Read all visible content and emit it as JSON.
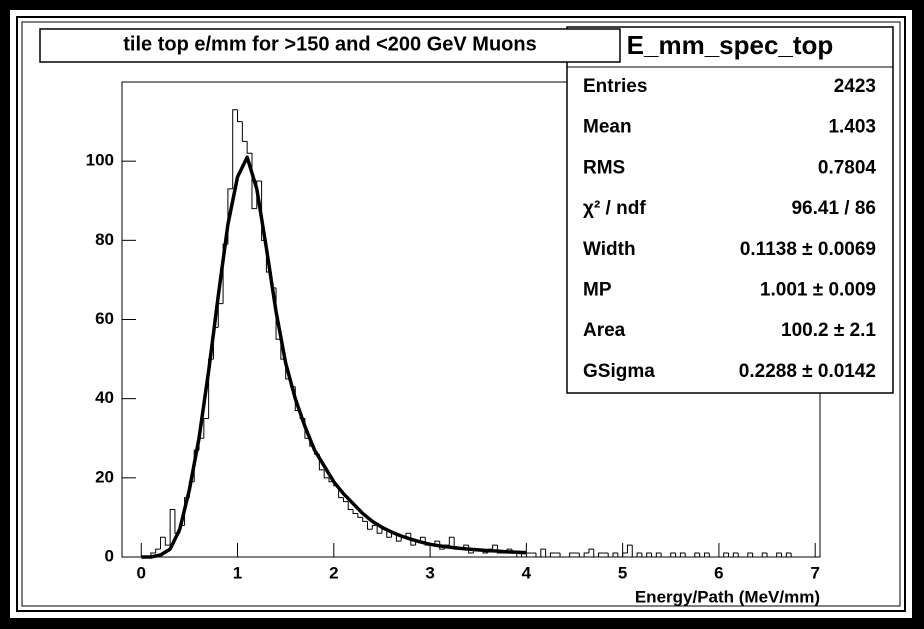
{
  "chart_data": {
    "type": "histogram",
    "title": "tile top e/mm for >150 and <200 GeV Muons",
    "x_label": "Energy/Path (MeV/mm)",
    "color": "#000000",
    "bins": [
      0,
      0.05,
      0.1,
      0.15,
      0.2,
      0.25,
      0.3,
      0.35,
      0.4,
      0.45,
      0.5,
      0.55,
      0.6,
      0.65,
      0.7,
      0.75,
      0.8,
      0.85,
      0.9,
      0.95,
      1,
      1.05,
      1.1,
      1.15,
      1.2,
      1.25,
      1.3,
      1.35,
      1.4,
      1.45,
      1.5,
      1.55,
      1.6,
      1.65,
      1.7,
      1.75,
      1.8,
      1.85,
      1.9,
      1.95,
      2,
      2.05,
      2.1,
      2.15,
      2.2,
      2.25,
      2.3,
      2.35,
      2.4,
      2.45,
      2.5,
      2.55,
      2.6,
      2.65,
      2.7,
      2.75,
      2.8,
      2.85,
      2.9,
      2.95,
      3,
      3.05,
      3.1,
      3.15,
      3.2,
      3.25,
      3.3,
      3.35,
      3.4,
      3.45,
      3.5,
      3.55,
      3.6,
      3.65,
      3.7,
      3.75,
      3.8,
      3.85,
      3.9,
      3.95,
      4,
      4.05,
      4.1,
      4.15,
      4.2,
      4.25,
      4.3,
      4.35,
      4.4,
      4.45,
      4.5,
      4.55,
      4.6,
      4.65,
      4.7,
      4.75,
      4.8,
      4.85,
      4.9,
      4.95,
      5,
      5.05,
      5.1,
      5.15,
      5.2,
      5.25,
      5.3,
      5.35,
      5.4,
      5.45,
      5.5,
      5.55,
      5.6,
      5.65,
      5.7,
      5.75,
      5.8,
      5.85,
      5.9,
      5.95,
      6,
      6.05,
      6.1,
      6.15,
      6.2,
      6.25,
      6.3,
      6.35,
      6.4,
      6.45,
      6.5,
      6.55,
      6.6,
      6.65,
      6.7,
      6.75,
      6.8,
      6.85,
      6.9,
      6.95,
      7
    ],
    "counts": [
      0,
      0,
      1,
      2,
      5,
      3,
      12,
      6,
      8,
      15,
      19,
      27,
      30,
      35,
      50,
      58,
      64,
      79,
      93,
      113,
      110,
      105,
      102,
      88,
      95,
      80,
      72,
      68,
      55,
      50,
      45,
      43,
      37,
      35,
      30,
      28,
      26,
      22,
      20,
      19,
      18,
      15,
      14,
      12,
      11,
      10,
      9,
      7,
      8,
      6,
      7,
      5,
      6,
      4,
      5,
      6,
      3,
      4,
      5,
      3,
      3,
      4,
      2,
      3,
      5,
      2,
      2,
      3,
      1,
      2,
      2,
      1,
      2,
      3,
      1,
      1,
      2,
      1,
      0,
      1,
      1,
      1,
      0,
      2,
      0,
      1,
      1,
      0,
      0,
      1,
      1,
      0,
      1,
      2,
      0,
      1,
      1,
      0,
      1,
      0,
      1,
      3,
      0,
      1,
      0,
      1,
      0,
      1,
      0,
      0,
      1,
      0,
      1,
      0,
      0,
      1,
      0,
      1,
      0,
      0,
      0,
      1,
      0,
      1,
      0,
      0,
      1,
      0,
      0,
      1,
      0,
      0,
      1,
      0,
      1,
      0,
      0,
      0,
      0,
      0
    ],
    "fit": {
      "x": [
        0,
        0.1,
        0.2,
        0.3,
        0.4,
        0.5,
        0.6,
        0.7,
        0.8,
        0.9,
        1,
        1.1,
        1.2,
        1.3,
        1.4,
        1.5,
        1.6,
        1.7,
        1.8,
        1.9,
        2,
        2.1,
        2.2,
        2.3,
        2.4,
        2.5,
        2.6,
        2.7,
        2.8,
        2.9,
        3,
        3.1,
        3.2,
        3.3,
        3.4,
        3.5,
        3.6,
        3.7,
        3.8,
        3.9,
        4
      ],
      "y": [
        0,
        0,
        0.5,
        2,
        7,
        17,
        30,
        47,
        66,
        84,
        96,
        101,
        93,
        78,
        62,
        49,
        40,
        33,
        27,
        23,
        19,
        16,
        13.5,
        11,
        9,
        7.5,
        6.3,
        5.3,
        4.5,
        3.8,
        3.2,
        2.8,
        2.5,
        2.2,
        2,
        1.8,
        1.6,
        1.5,
        1.3,
        1.2,
        1.1
      ]
    },
    "xlim": [
      -0.2,
      7.05
    ],
    "ylim": [
      0,
      120
    ],
    "xticks": [
      0,
      1,
      2,
      3,
      4,
      5,
      6,
      7
    ],
    "yticks": [
      0,
      20,
      40,
      60,
      80,
      100
    ],
    "stats": {
      "name": "E_mm_spec_top",
      "rows": [
        {
          "label": "Entries",
          "value": "2423"
        },
        {
          "label": "Mean",
          "value": "1.403"
        },
        {
          "label": "RMS",
          "value": "0.7804"
        },
        {
          "label": "χ² / ndf",
          "value": "96.41 / 86"
        },
        {
          "label": "Width",
          "value": "0.1138 ± 0.0069"
        },
        {
          "label": "MP",
          "value": "1.001 ± 0.009"
        },
        {
          "label": "Area",
          "value": "100.2 ± 2.1"
        },
        {
          "label": "GSigma",
          "value": "0.2288 ± 0.0142"
        }
      ]
    }
  }
}
